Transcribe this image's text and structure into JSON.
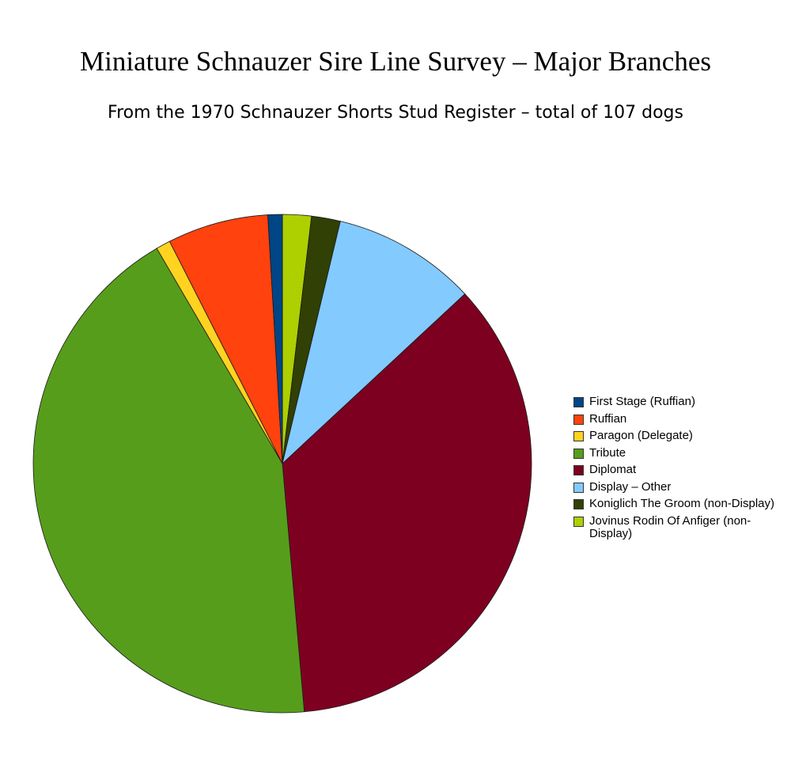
{
  "chart_data": {
    "type": "pie",
    "title": "Miniature Schnauzer Sire Line Survey – Major Branches",
    "subtitle": "From the 1970 Schnauzer Shorts Stud Register – total of 107 dogs",
    "legend_position": "right",
    "start_angle_deg": 0,
    "direction": "clockwise",
    "slices": [
      {
        "label": "Jovinus Rodin Of Anfiger (non-Display)",
        "value": 2,
        "color": "#aecf00"
      },
      {
        "label": "Koniglich The Groom (non-Display)",
        "value": 2,
        "color": "#314004"
      },
      {
        "label": "Display – Other",
        "value": 10,
        "color": "#83caff"
      },
      {
        "label": "Diplomat",
        "value": 38,
        "color": "#7e0021"
      },
      {
        "label": "Tribute",
        "value": 46,
        "color": "#579d1c"
      },
      {
        "label": "Paragon (Delegate)",
        "value": 1,
        "color": "#ffd320"
      },
      {
        "label": "Ruffian",
        "value": 7,
        "color": "#ff420e"
      },
      {
        "label": "First Stage (Ruffian)",
        "value": 1,
        "color": "#004586"
      }
    ],
    "legend_order": [
      "First Stage (Ruffian)",
      "Ruffian",
      "Paragon (Delegate)",
      "Tribute",
      "Diplomat",
      "Display – Other",
      "Koniglich The Groom (non-Display)",
      "Jovinus Rodin Of Anfiger (non-Display)"
    ]
  }
}
